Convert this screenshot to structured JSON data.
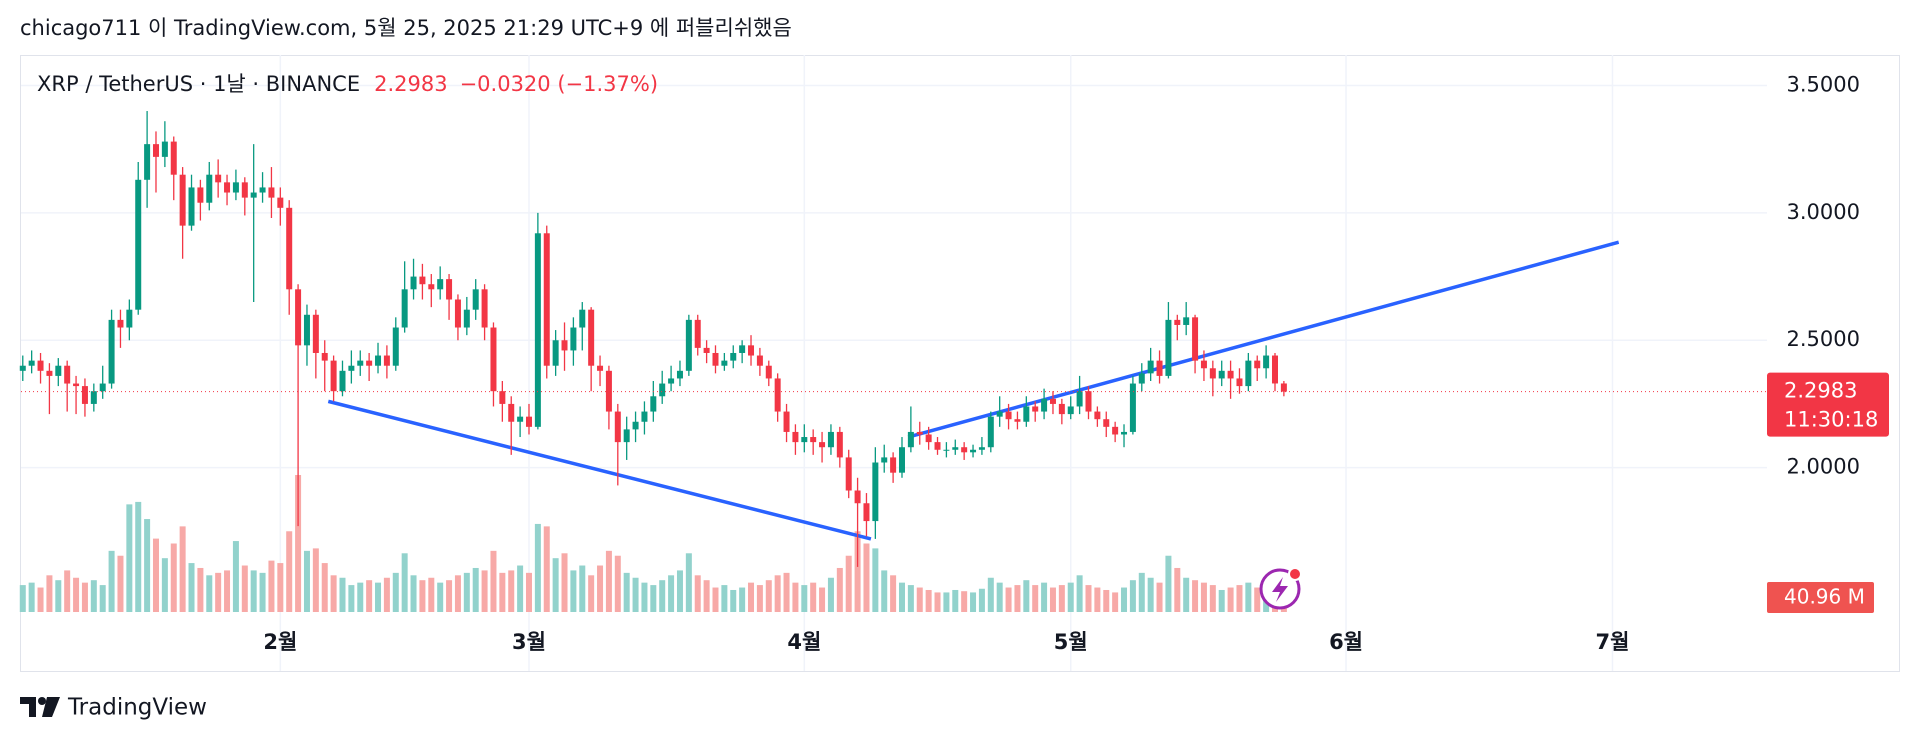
{
  "published": "chicago711 이 TradingView.com, 5월 25, 2025 21:29 UTC+9 에 퍼블리쉬했음",
  "footer": "TradingView",
  "chart_data": {
    "type": "candlestick",
    "symbol": "XRP / TetherUS · 1날 · BINANCE",
    "change_label": "−0.0320 (−1.37%)",
    "countdown": "11:30:18",
    "last_volume_label": "40.96 M",
    "up_color": "#089981",
    "down_color": "#f23645",
    "up_volume_color": "#92d2cc",
    "down_volume_color": "#f7a9a7",
    "trendline_color": "#2962ff",
    "grid": true,
    "xlim": [
      -0.2,
      196.4
    ],
    "xticks": [
      {
        "value": 29,
        "label": "2월"
      },
      {
        "value": 57,
        "label": "3월"
      },
      {
        "value": 88,
        "label": "4월"
      },
      {
        "value": 118,
        "label": "5월"
      },
      {
        "value": 149,
        "label": "6월"
      },
      {
        "value": 179,
        "label": "7월"
      }
    ],
    "ylim": [
      1.433,
      3.62
    ],
    "yticks": [
      {
        "value": 2,
        "label": "2.0000"
      },
      {
        "value": 2.5,
        "label": "2.5000"
      },
      {
        "value": 3,
        "label": "3.0000"
      },
      {
        "value": 3.5,
        "label": "3.5000"
      }
    ],
    "open": [
      2.38,
      2.4,
      2.42,
      2.38,
      2.36,
      2.4,
      2.33,
      2.32,
      2.25,
      2.3,
      2.33,
      2.58,
      2.55,
      2.62,
      3.13,
      3.27,
      3.22,
      3.28,
      3.15,
      2.95,
      3.1,
      3.04,
      3.15,
      3.12,
      3.08,
      3.12,
      3.06,
      3.08,
      3.1,
      3.06,
      3.02,
      2.7,
      2.48,
      2.6,
      2.45,
      2.42,
      2.3,
      2.38,
      2.4,
      2.42,
      2.4,
      2.44,
      2.4,
      2.55,
      2.7,
      2.75,
      2.72,
      2.7,
      2.74,
      2.66,
      2.55,
      2.62,
      2.7,
      2.55,
      2.3,
      2.25,
      2.18,
      2.2,
      2.16,
      2.92,
      2.4,
      2.5,
      2.46,
      2.55,
      2.62,
      2.4,
      2.38,
      2.22,
      2.1,
      2.15,
      2.18,
      2.22,
      2.28,
      2.33,
      2.35,
      2.38,
      2.58,
      2.47,
      2.45,
      2.4,
      2.42,
      2.45,
      2.48,
      2.44,
      2.4,
      2.35,
      2.22,
      2.14,
      2.1,
      2.12,
      2.1,
      2.08,
      2.14,
      2.04,
      1.91,
      1.86,
      1.79,
      2.02,
      2.04,
      1.98,
      2.08,
      2.14,
      2.13,
      2.1,
      2.07,
      2.07,
      2.08,
      2.06,
      2.07,
      2.08,
      2.2,
      2.22,
      2.19,
      2.18,
      2.24,
      2.22,
      2.27,
      2.25,
      2.21,
      2.24,
      2.3,
      2.22,
      2.19,
      2.16,
      2.13,
      2.14,
      2.33,
      2.37,
      2.42,
      2.36,
      2.58,
      2.56,
      2.59,
      2.42,
      2.39,
      2.35,
      2.38,
      2.35,
      2.32,
      2.42,
      2.39,
      2.44,
      2.3303
    ],
    "high": [
      2.44,
      2.46,
      2.45,
      2.41,
      2.43,
      2.42,
      2.36,
      2.35,
      2.33,
      2.4,
      2.62,
      2.62,
      2.66,
      3.2,
      3.4,
      3.32,
      3.36,
      3.3,
      3.18,
      3.15,
      3.13,
      3.2,
      3.21,
      3.15,
      3.17,
      3.14,
      3.27,
      3.16,
      3.18,
      3.1,
      3.05,
      2.72,
      2.64,
      2.62,
      2.5,
      2.44,
      2.42,
      2.46,
      2.46,
      2.45,
      2.49,
      2.48,
      2.59,
      2.81,
      2.82,
      2.8,
      2.76,
      2.79,
      2.76,
      2.68,
      2.67,
      2.74,
      2.72,
      2.57,
      2.34,
      2.28,
      2.24,
      2.25,
      3.0,
      2.95,
      2.54,
      2.57,
      2.59,
      2.65,
      2.63,
      2.44,
      2.4,
      2.25,
      2.2,
      2.22,
      2.26,
      2.34,
      2.38,
      2.4,
      2.42,
      2.6,
      2.6,
      2.5,
      2.48,
      2.45,
      2.48,
      2.5,
      2.52,
      2.47,
      2.42,
      2.37,
      2.25,
      2.17,
      2.17,
      2.15,
      2.14,
      2.17,
      2.16,
      2.07,
      1.96,
      1.9,
      2.08,
      2.09,
      2.06,
      2.12,
      2.24,
      2.18,
      2.16,
      2.12,
      2.1,
      2.11,
      2.1,
      2.09,
      2.12,
      2.22,
      2.28,
      2.25,
      2.22,
      2.28,
      2.26,
      2.31,
      2.3,
      2.27,
      2.28,
      2.36,
      2.32,
      2.24,
      2.22,
      2.18,
      2.17,
      2.36,
      2.41,
      2.47,
      2.46,
      2.65,
      2.6,
      2.65,
      2.6,
      2.46,
      2.42,
      2.42,
      2.42,
      2.39,
      2.45,
      2.44,
      2.48,
      2.45,
      2.34
    ],
    "low": [
      2.34,
      2.37,
      2.33,
      2.21,
      2.32,
      2.22,
      2.21,
      2.2,
      2.22,
      2.27,
      2.31,
      2.47,
      2.5,
      2.6,
      3.02,
      3.08,
      3.18,
      3.05,
      2.82,
      2.93,
      2.97,
      3.01,
      3.06,
      3.03,
      3.05,
      2.99,
      2.65,
      3.04,
      2.98,
      2.95,
      2.6,
      1.77,
      2.4,
      2.35,
      2.3,
      2.26,
      2.28,
      2.33,
      2.36,
      2.34,
      2.37,
      2.35,
      2.38,
      2.53,
      2.66,
      2.66,
      2.63,
      2.66,
      2.58,
      2.5,
      2.52,
      2.58,
      2.5,
      2.24,
      2.18,
      2.05,
      2.12,
      2.13,
      2.15,
      2.35,
      2.36,
      2.38,
      2.4,
      2.46,
      2.3,
      2.32,
      2.15,
      1.93,
      2.03,
      2.1,
      2.13,
      2.18,
      2.25,
      2.3,
      2.32,
      2.36,
      2.44,
      2.41,
      2.37,
      2.38,
      2.39,
      2.41,
      2.4,
      2.36,
      2.32,
      2.18,
      2.1,
      2.05,
      2.06,
      2.05,
      2.02,
      2.05,
      2.0,
      1.88,
      1.61,
      1.73,
      1.72,
      1.98,
      1.94,
      1.96,
      2.06,
      2.09,
      2.07,
      2.05,
      2.04,
      2.05,
      2.03,
      2.04,
      2.05,
      2.06,
      2.16,
      2.15,
      2.15,
      2.16,
      2.18,
      2.19,
      2.21,
      2.17,
      2.19,
      2.21,
      2.19,
      2.16,
      2.12,
      2.1,
      2.08,
      2.13,
      2.3,
      2.34,
      2.33,
      2.35,
      2.5,
      2.52,
      2.37,
      2.34,
      2.28,
      2.32,
      2.27,
      2.29,
      2.3,
      2.34,
      2.35,
      2.3,
      2.28
    ],
    "close": [
      2.4,
      2.42,
      2.38,
      2.36,
      2.4,
      2.33,
      2.32,
      2.25,
      2.3,
      2.33,
      2.58,
      2.55,
      2.62,
      3.13,
      3.27,
      3.22,
      3.28,
      3.15,
      2.95,
      3.1,
      3.04,
      3.15,
      3.12,
      3.08,
      3.12,
      3.06,
      3.08,
      3.1,
      3.06,
      3.02,
      2.7,
      2.48,
      2.6,
      2.45,
      2.42,
      2.3,
      2.38,
      2.4,
      2.42,
      2.4,
      2.44,
      2.4,
      2.55,
      2.7,
      2.75,
      2.72,
      2.7,
      2.74,
      2.66,
      2.55,
      2.62,
      2.7,
      2.55,
      2.3,
      2.25,
      2.18,
      2.2,
      2.16,
      2.92,
      2.4,
      2.5,
      2.46,
      2.55,
      2.62,
      2.4,
      2.38,
      2.22,
      2.1,
      2.15,
      2.18,
      2.22,
      2.28,
      2.33,
      2.35,
      2.38,
      2.58,
      2.47,
      2.45,
      2.4,
      2.42,
      2.45,
      2.48,
      2.44,
      2.4,
      2.35,
      2.22,
      2.14,
      2.1,
      2.12,
      2.1,
      2.08,
      2.14,
      2.04,
      1.91,
      1.86,
      1.79,
      2.02,
      2.04,
      1.98,
      2.08,
      2.14,
      2.13,
      2.1,
      2.07,
      2.07,
      2.08,
      2.06,
      2.07,
      2.08,
      2.2,
      2.22,
      2.19,
      2.18,
      2.24,
      2.22,
      2.27,
      2.25,
      2.21,
      2.24,
      2.3,
      2.22,
      2.19,
      2.16,
      2.13,
      2.14,
      2.33,
      2.37,
      2.42,
      2.36,
      2.58,
      2.56,
      2.59,
      2.42,
      2.39,
      2.35,
      2.38,
      2.35,
      2.32,
      2.42,
      2.39,
      2.44,
      2.3303,
      2.2983
    ],
    "volume": [
      110,
      120,
      100,
      150,
      130,
      170,
      140,
      120,
      130,
      110,
      250,
      230,
      440,
      450,
      380,
      300,
      220,
      280,
      350,
      200,
      180,
      150,
      160,
      170,
      290,
      190,
      170,
      160,
      210,
      200,
      330,
      560,
      250,
      260,
      200,
      150,
      140,
      110,
      120,
      130,
      120,
      140,
      160,
      240,
      150,
      130,
      140,
      120,
      130,
      150,
      160,
      180,
      170,
      250,
      160,
      170,
      190,
      160,
      360,
      350,
      220,
      240,
      170,
      190,
      150,
      190,
      250,
      230,
      160,
      140,
      120,
      110,
      130,
      150,
      170,
      240,
      150,
      130,
      100,
      110,
      90,
      100,
      120,
      110,
      130,
      150,
      160,
      120,
      110,
      120,
      100,
      140,
      180,
      230,
      330,
      280,
      260,
      170,
      150,
      120,
      110,
      100,
      90,
      80,
      80,
      90,
      85,
      80,
      95,
      140,
      120,
      100,
      110,
      130,
      110,
      120,
      100,
      110,
      120,
      150,
      110,
      100,
      90,
      80,
      100,
      130,
      160,
      140,
      120,
      230,
      180,
      140,
      130,
      120,
      110,
      90,
      100,
      110,
      120,
      100,
      90,
      60,
      40.96
    ],
    "trendlines": [
      {
        "x": [
          34.4,
          95.5
        ],
        "y": [
          2.26,
          1.72
        ]
      },
      {
        "x": [
          99.7,
          179.7
        ],
        "y": [
          2.12,
          2.885
        ]
      }
    ]
  }
}
